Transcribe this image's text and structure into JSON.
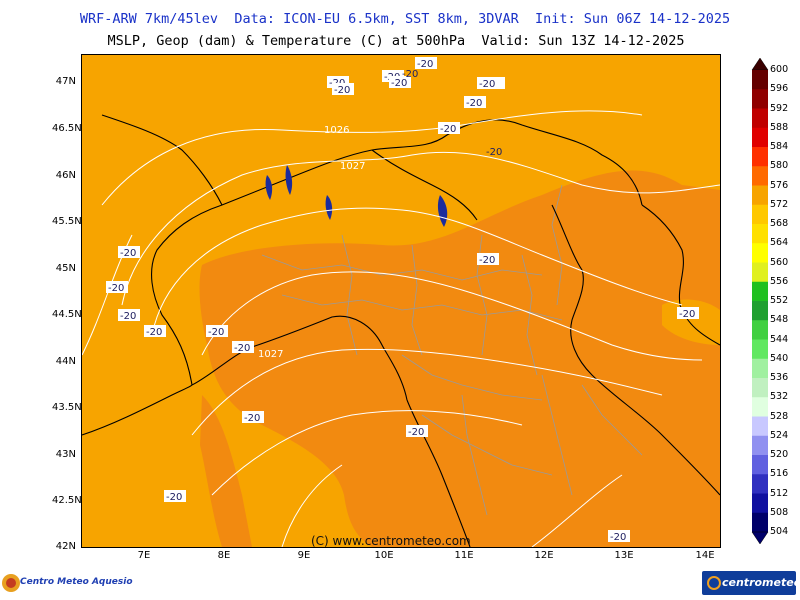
{
  "header": {
    "title_line1": "WRF-ARW 7km/45lev  Data: ICON-EU 6.5km, SST 8km, 3DVAR  Init: Sun 06Z 14-12-2025",
    "title_line2": "MSLP, Geop (dam) & Temperature (C) at 500hPa  Valid: Sun 13Z 14-12-2025"
  },
  "map": {
    "lat_labels": [
      "47N",
      "46.5N",
      "46N",
      "45.5N",
      "45N",
      "44.5N",
      "44N",
      "43.5N",
      "43N",
      "42.5N",
      "42N"
    ],
    "lon_labels": [
      "7E",
      "8E",
      "9E",
      "10E",
      "11E",
      "12E",
      "13E",
      "14E"
    ],
    "colors": {
      "geop_572_576": "#f7a400",
      "geop_576_580": "#f28a10",
      "coast": "#000000",
      "border": "#000000",
      "province": "#9a9a9a",
      "isobar": "#ffffff",
      "lake": "#1c2c9c"
    },
    "isobar_labels": [
      "1026",
      "1027",
      "1027"
    ],
    "temp_labels": [
      "-20",
      "-20",
      "-20",
      "-20",
      "-20",
      "-20",
      "-20",
      "-20",
      "-20",
      "-20",
      "-20",
      "-20",
      "-20",
      "-20",
      "-20",
      "-20",
      "-20",
      "-20",
      "-20",
      "-20",
      "-20",
      "-20"
    ],
    "copyright": "(C) www.centrometeo.com"
  },
  "colorbar": {
    "levels": [
      "600",
      "596",
      "592",
      "588",
      "584",
      "580",
      "576",
      "572",
      "568",
      "564",
      "560",
      "556",
      "552",
      "548",
      "544",
      "540",
      "536",
      "532",
      "528",
      "524",
      "520",
      "516",
      "512",
      "508",
      "504"
    ],
    "colors": [
      "#3a0000",
      "#650000",
      "#900000",
      "#c00000",
      "#e00000",
      "#ff3000",
      "#ff6a00",
      "#f7a400",
      "#ffc800",
      "#ffe000",
      "#ffff00",
      "#e0f020",
      "#20c020",
      "#20a030",
      "#40d040",
      "#60e860",
      "#a0f0a0",
      "#c0f0c0",
      "#e0ffe0",
      "#c8c8ff",
      "#9090f0",
      "#6060e0",
      "#3030c0",
      "#1010a0",
      "#00006a"
    ]
  },
  "logos": {
    "left": "Centro Meteo Aquesio",
    "right": "centrometeo"
  }
}
